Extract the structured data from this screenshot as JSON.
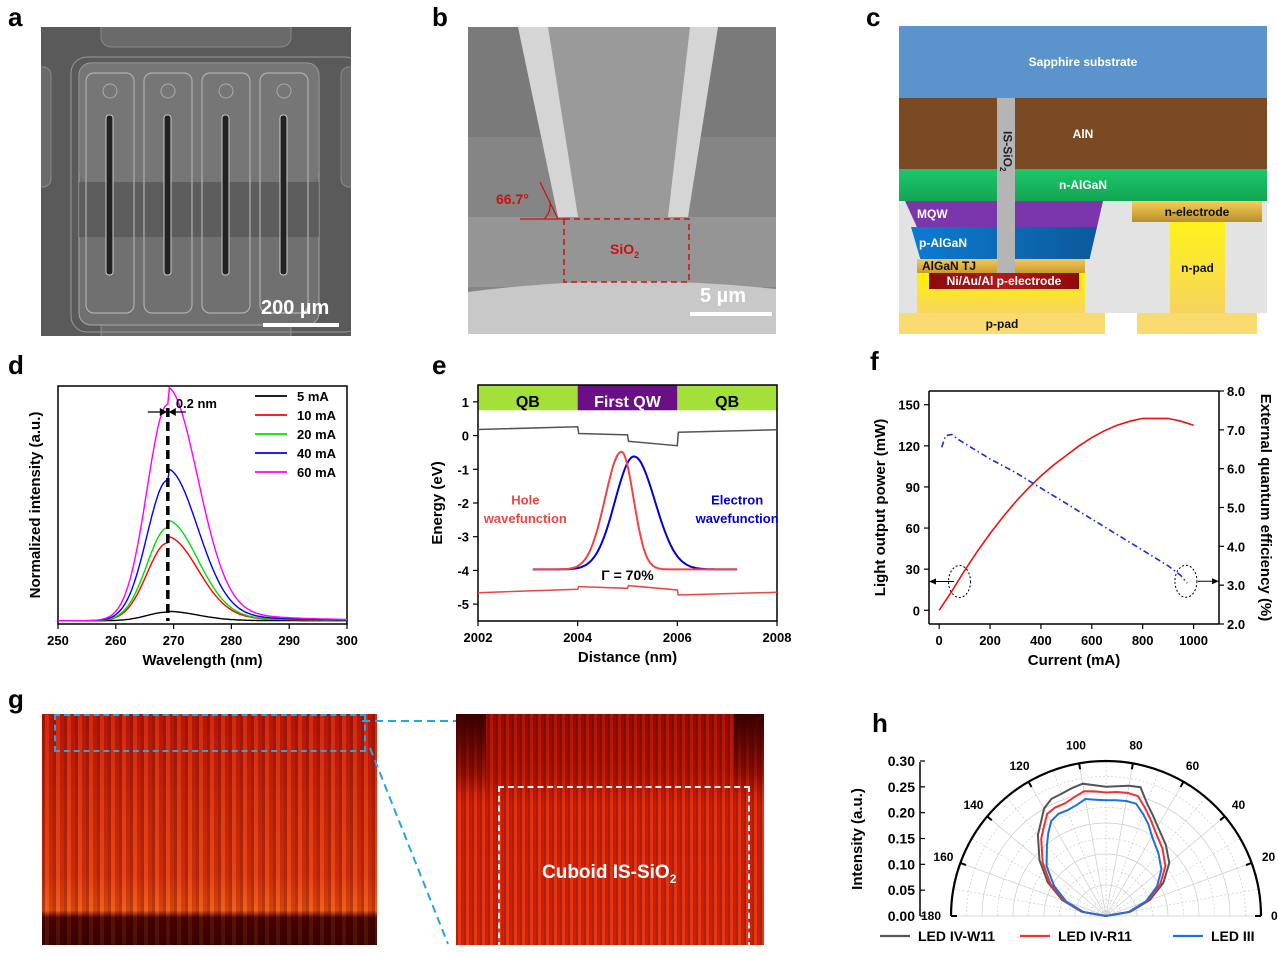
{
  "panels": {
    "a": {
      "label": "a",
      "scale_bar": "200 µm"
    },
    "b": {
      "label": "b",
      "scale_bar": "5 µm",
      "angle": "66.7°",
      "region": "SiO",
      "region_sub": "2"
    },
    "c": {
      "label": "c",
      "layers": {
        "sapphire": "Sapphire substrate",
        "aln": "AlN",
        "nalgan": "n-AlGaN",
        "mqw": "MQW",
        "palgan": "p-AlGaN",
        "tj": "AlGaN TJ",
        "pelectrode": "Ni/Au/Al p-electrode",
        "nelectrode": "n-electrode",
        "npad": "n-pad",
        "ppad": "p-pad",
        "sio2": "IS-SiO",
        "sio2_sub": "2"
      },
      "colors": {
        "sapphire": "#5b93cc",
        "aln": "#7a4a22",
        "nalgan": "#1bbf5f",
        "mqw": "#7b35ad",
        "palgan": "#0b6fbf",
        "tj": "#e8b84a",
        "pelectrode": "#9b0e0e",
        "pad": "#fadb70",
        "npad": "#f7ef2c",
        "sio2": "#b5b5b5",
        "bg": "#e3e3e3"
      }
    },
    "g": {
      "label": "g",
      "inset_text": "Cuboid IS-SiO",
      "inset_sub": "2"
    }
  },
  "chart_data": [
    {
      "id": "d",
      "label": "d",
      "type": "line",
      "title": "",
      "xlabel": "Wavelength (nm)",
      "ylabel": "Normalized intensity (a.u.)",
      "xlim": [
        250,
        300
      ],
      "ylim": [
        0,
        1.1
      ],
      "xticks": [
        250,
        260,
        270,
        280,
        290,
        300
      ],
      "annotation": "0.2 nm",
      "peak_wavelength": 269,
      "legend_position": "top-right",
      "series": [
        {
          "name": "5 mA",
          "color": "#000000",
          "peak": 0.04
        },
        {
          "name": "10 mA",
          "color": "#ff0000",
          "peak": 0.36
        },
        {
          "name": "20 mA",
          "color": "#00e000",
          "peak": 0.43
        },
        {
          "name": "40 mA",
          "color": "#0000ff",
          "peak": 0.65
        },
        {
          "name": "60 mA",
          "color": "#ff00ff",
          "peak": 1.0
        }
      ]
    },
    {
      "id": "e",
      "label": "e",
      "type": "line",
      "xlabel": "Distance (nm)",
      "ylabel": "Energy (eV)",
      "xlim": [
        2002,
        2008
      ],
      "ylim": [
        -5.5,
        1.5
      ],
      "xticks": [
        2002,
        2004,
        2006,
        2008
      ],
      "yticks": [
        1,
        0,
        -1,
        -2,
        -3,
        -4,
        -5
      ],
      "regions": [
        {
          "name": "QB",
          "from": 2002,
          "to": 2004,
          "color": "#a4e03a"
        },
        {
          "name": "First QW",
          "from": 2004,
          "to": 2006,
          "color": "#6a0f86"
        },
        {
          "name": "QB",
          "from": 2006,
          "to": 2008,
          "color": "#a4e03a"
        }
      ],
      "conduction_band": {
        "color": "#555555",
        "points": [
          [
            2002,
            0.18
          ],
          [
            2004,
            0.26
          ],
          [
            2004.02,
            0.06
          ],
          [
            2005,
            0.02
          ],
          [
            2005.02,
            -0.17
          ],
          [
            2006,
            -0.3
          ],
          [
            2006.02,
            0.1
          ],
          [
            2008,
            0.17
          ]
        ]
      },
      "valence_band": {
        "color": "#ee4444",
        "points": [
          [
            2002,
            -4.66
          ],
          [
            2004,
            -4.56
          ],
          [
            2004.02,
            -4.48
          ],
          [
            2005,
            -4.53
          ],
          [
            2005.02,
            -4.45
          ],
          [
            2006,
            -4.58
          ],
          [
            2006.02,
            -4.73
          ],
          [
            2008,
            -4.65
          ]
        ]
      },
      "hole_wavefunction": {
        "name": "Hole wavefunction",
        "color": "#ee4444",
        "baseline": -3.97,
        "peak_x": 2004.88,
        "peak_y": -0.48,
        "xrange": [
          2003.1,
          2007.2
        ]
      },
      "electron_wavefunction": {
        "name": "Electron wavefunction",
        "color": "#0000dd",
        "baseline": -3.97,
        "peak_x": 2005.13,
        "peak_y": -0.62,
        "xrange": [
          2003.1,
          2007.2
        ]
      },
      "annotation": "Γ = 70%"
    },
    {
      "id": "f",
      "label": "f",
      "type": "line",
      "xlabel": "Current (mA)",
      "ylabel": "Light output power (mW)",
      "ylabel_right": "External quantum efficiency (%)",
      "xlim": [
        -40,
        1100
      ],
      "ylim": [
        -10,
        160
      ],
      "ylim_right": [
        2.0,
        8.0
      ],
      "xticks": [
        0,
        200,
        400,
        600,
        800,
        1000
      ],
      "yticks": [
        0,
        30,
        60,
        90,
        120,
        150
      ],
      "yticks_right": [
        "2.0",
        "3.0",
        "4.0",
        "5.0",
        "6.0",
        "7.0",
        "8.0"
      ],
      "series": [
        {
          "name": "Light output power",
          "axis": "left",
          "color": "#ee1111",
          "style": "solid",
          "x": [
            0,
            50,
            100,
            150,
            200,
            250,
            300,
            350,
            400,
            450,
            500,
            550,
            600,
            650,
            700,
            750,
            800,
            850,
            900,
            950,
            1000
          ],
          "y": [
            0,
            14,
            29,
            43,
            56,
            68,
            79,
            89,
            98,
            106,
            113,
            120,
            126,
            131,
            135,
            138,
            140,
            140,
            140,
            138,
            135
          ]
        },
        {
          "name": "External quantum efficiency",
          "axis": "right",
          "color": "#1a2be0",
          "style": "dash-dot",
          "x": [
            10,
            25,
            50,
            75,
            100,
            200,
            300,
            400,
            500,
            600,
            700,
            800,
            900,
            950,
            975
          ],
          "y": [
            6.55,
            6.85,
            6.88,
            6.75,
            6.65,
            6.25,
            5.9,
            5.5,
            5.1,
            4.7,
            4.3,
            3.9,
            3.5,
            3.25,
            3.05
          ]
        }
      ]
    },
    {
      "id": "h",
      "label": "h",
      "type": "polar",
      "ylabel": "Intensity (a.u.)",
      "rlim": [
        0,
        0.3
      ],
      "rticks": [
        "0.00",
        "0.05",
        "0.10",
        "0.15",
        "0.20",
        "0.25",
        "0.30"
      ],
      "angle_ticks": [
        0,
        20,
        40,
        60,
        80,
        100,
        120,
        140,
        160,
        180
      ],
      "legend_position": "bottom",
      "series": [
        {
          "name": "LED IV-W11",
          "color": "#555555",
          "angles": [
            0,
            10,
            20,
            30,
            40,
            50,
            60,
            65,
            70,
            75,
            80,
            85,
            90,
            95,
            100,
            105,
            110,
            115,
            120,
            125,
            130,
            140,
            150,
            160,
            170,
            180
          ],
          "r": [
            0,
            0.048,
            0.09,
            0.128,
            0.16,
            0.18,
            0.2,
            0.215,
            0.232,
            0.258,
            0.256,
            0.252,
            0.25,
            0.254,
            0.26,
            0.256,
            0.252,
            0.25,
            0.24,
            0.22,
            0.205,
            0.168,
            0.13,
            0.09,
            0.048,
            0
          ]
        },
        {
          "name": "LED IV-R11",
          "color": "#ee3333",
          "angles": [
            0,
            10,
            20,
            30,
            40,
            50,
            60,
            65,
            70,
            75,
            80,
            85,
            90,
            95,
            100,
            105,
            110,
            115,
            120,
            125,
            130,
            140,
            150,
            160,
            170,
            180
          ],
          "r": [
            0,
            0.046,
            0.086,
            0.121,
            0.15,
            0.17,
            0.19,
            0.205,
            0.222,
            0.24,
            0.242,
            0.241,
            0.239,
            0.242,
            0.245,
            0.238,
            0.232,
            0.232,
            0.228,
            0.21,
            0.195,
            0.16,
            0.124,
            0.086,
            0.046,
            0
          ]
        },
        {
          "name": "LED III",
          "color": "#1f6fe0",
          "angles": [
            0,
            10,
            20,
            30,
            40,
            50,
            60,
            65,
            70,
            75,
            80,
            85,
            90,
            95,
            100,
            105,
            110,
            115,
            120,
            125,
            130,
            140,
            150,
            160,
            170,
            180
          ],
          "r": [
            0,
            0.044,
            0.082,
            0.114,
            0.14,
            0.158,
            0.178,
            0.195,
            0.21,
            0.225,
            0.226,
            0.225,
            0.224,
            0.226,
            0.23,
            0.222,
            0.218,
            0.218,
            0.212,
            0.195,
            0.178,
            0.15,
            0.116,
            0.082,
            0.044,
            0
          ]
        }
      ]
    }
  ]
}
